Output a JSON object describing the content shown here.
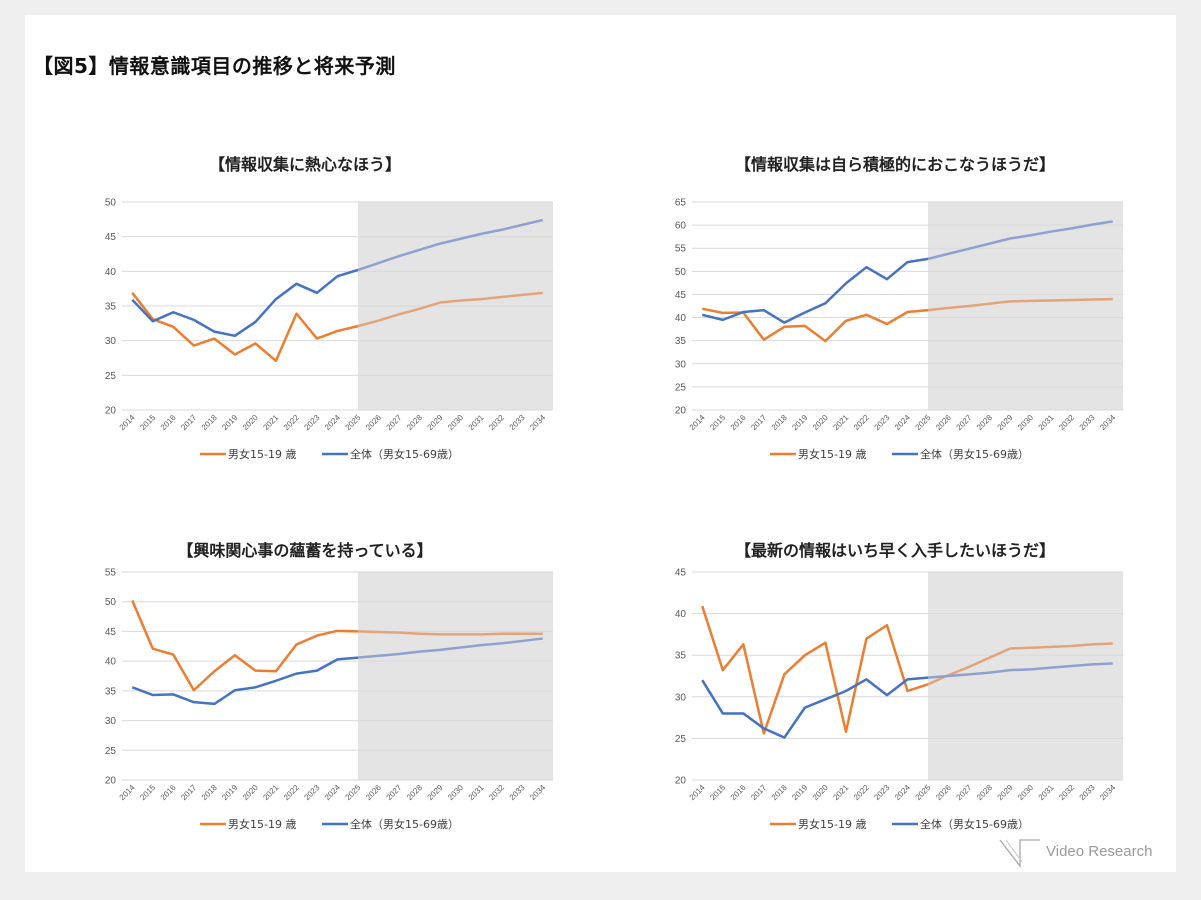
{
  "page": {
    "title": "【図5】情報意識項目の推移と将来予測",
    "logo": "Video Research"
  },
  "colors": {
    "orange": "#ED7D31",
    "blue": "#4472C4",
    "orange_forecast": "#E3A47C",
    "blue_forecast": "#8EA2CF",
    "forecast_shade": "#E4E4E4",
    "grid": "#D9D9D9"
  },
  "chart_data": [
    {
      "type": "line",
      "title": "【情報収集に熱心なほう】",
      "categories": [
        "2014",
        "2015",
        "2016",
        "2017",
        "2018",
        "2019",
        "2020",
        "2021",
        "2022",
        "2023",
        "2024",
        "2025",
        "2026",
        "2027",
        "2028",
        "2029",
        "2030",
        "2031",
        "2032",
        "2033",
        "2034"
      ],
      "forecast_from": "2025",
      "ylim": [
        20,
        50
      ],
      "ystep": 5,
      "grid": true,
      "legend": "bottom",
      "series": [
        {
          "name": "男女15-19 歳",
          "color": "orange",
          "values": [
            36.9,
            33.1,
            32.0,
            29.3,
            30.3,
            28.0,
            29.6,
            27.1,
            33.9,
            30.3,
            31.4,
            32.1,
            32.9,
            33.8,
            34.6,
            35.5,
            35.8,
            36.0,
            36.3,
            36.6,
            36.9
          ]
        },
        {
          "name": "全体（男女15-69歳）",
          "color": "blue",
          "values": [
            35.9,
            32.8,
            34.1,
            33.0,
            31.3,
            30.7,
            32.7,
            36.0,
            38.2,
            36.9,
            39.3,
            40.2,
            41.2,
            42.2,
            43.1,
            44.0,
            44.7,
            45.4,
            46.0,
            46.7,
            47.4
          ]
        }
      ]
    },
    {
      "type": "line",
      "title": "【情報収集は自ら積極的におこなうほうだ】",
      "categories": [
        "2014",
        "2015",
        "2016",
        "2017",
        "2018",
        "2019",
        "2020",
        "2021",
        "2022",
        "2023",
        "2024",
        "2025",
        "2026",
        "2027",
        "2028",
        "2029",
        "2030",
        "2031",
        "2032",
        "2033",
        "2034"
      ],
      "forecast_from": "2025",
      "ylim": [
        20,
        65
      ],
      "ystep": 5,
      "grid": true,
      "legend": "bottom",
      "series": [
        {
          "name": "男女15-19 歳",
          "color": "orange",
          "values": [
            41.9,
            41.0,
            41.1,
            35.2,
            38.0,
            38.2,
            34.9,
            39.3,
            40.6,
            38.6,
            41.2,
            41.6,
            42.1,
            42.5,
            43.0,
            43.5,
            43.6,
            43.7,
            43.8,
            43.9,
            44.0
          ]
        },
        {
          "name": "全体（男女15-69歳）",
          "color": "blue",
          "values": [
            40.6,
            39.5,
            41.2,
            41.6,
            38.9,
            41.1,
            43.1,
            47.4,
            50.9,
            48.3,
            52.0,
            52.7,
            53.8,
            54.9,
            56.0,
            57.1,
            57.8,
            58.6,
            59.3,
            60.1,
            60.8
          ]
        }
      ]
    },
    {
      "type": "line",
      "title": "【興味関心事の蘊蓄を持っている】",
      "categories": [
        "2014",
        "2015",
        "2016",
        "2017",
        "2018",
        "2019",
        "2020",
        "2021",
        "2022",
        "2023",
        "2024",
        "2025",
        "2026",
        "2027",
        "2028",
        "2029",
        "2030",
        "2031",
        "2032",
        "2033",
        "2034"
      ],
      "forecast_from": "2025",
      "ylim": [
        20,
        55
      ],
      "ystep": 5,
      "grid": true,
      "legend": "bottom",
      "series": [
        {
          "name": "男女15-19 歳",
          "color": "orange",
          "values": [
            50.2,
            42.1,
            41.1,
            35.1,
            38.3,
            41.0,
            38.4,
            38.3,
            42.8,
            44.3,
            45.1,
            45.0,
            44.9,
            44.8,
            44.6,
            44.5,
            44.5,
            44.5,
            44.6,
            44.6,
            44.6
          ]
        },
        {
          "name": "全体（男女15-69歳）",
          "color": "blue",
          "values": [
            35.6,
            34.3,
            34.4,
            33.1,
            32.8,
            35.1,
            35.6,
            36.7,
            37.9,
            38.4,
            40.3,
            40.6,
            40.9,
            41.2,
            41.6,
            41.9,
            42.3,
            42.7,
            43.0,
            43.4,
            43.8
          ]
        }
      ]
    },
    {
      "type": "line",
      "title": "【最新の情報はいち早く入手したいほうだ】",
      "categories": [
        "2014",
        "2015",
        "2016",
        "2017",
        "2018",
        "2019",
        "2020",
        "2021",
        "2022",
        "2023",
        "2024",
        "2025",
        "2026",
        "2027",
        "2028",
        "2029",
        "2030",
        "2031",
        "2032",
        "2033",
        "2034"
      ],
      "forecast_from": "2025",
      "ylim": [
        20,
        45
      ],
      "ystep": 5,
      "grid": true,
      "legend": "bottom",
      "series": [
        {
          "name": "男女15-19 歳",
          "color": "orange",
          "values": [
            40.9,
            33.2,
            36.3,
            25.6,
            32.7,
            35.0,
            36.5,
            25.8,
            37.0,
            38.6,
            30.7,
            31.5,
            32.6,
            33.6,
            34.7,
            35.8,
            35.9,
            36.0,
            36.1,
            36.3,
            36.4
          ]
        },
        {
          "name": "全体（男女15-69歳）",
          "color": "blue",
          "values": [
            32.0,
            28.0,
            28.0,
            26.2,
            25.1,
            28.7,
            29.7,
            30.7,
            32.1,
            30.2,
            32.1,
            32.3,
            32.5,
            32.7,
            32.9,
            33.2,
            33.3,
            33.5,
            33.7,
            33.9,
            34.0
          ]
        }
      ]
    }
  ]
}
